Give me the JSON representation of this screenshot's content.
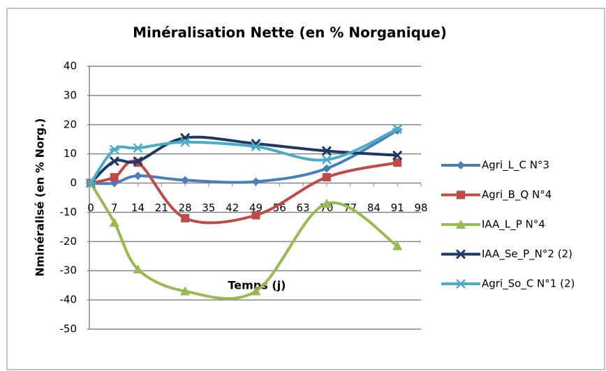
{
  "chart_data": {
    "type": "line",
    "title": "Minéralisation Nette (en % Norganique)",
    "x_label": "Temps (j)",
    "y_label": "Nminéralisé (en % Norg.)",
    "x": [
      0,
      7,
      14,
      28,
      49,
      70,
      91
    ],
    "xlim": [
      0,
      98
    ],
    "xticks": [
      0,
      7,
      14,
      21,
      28,
      35,
      42,
      49,
      56,
      63,
      70,
      77,
      84,
      91,
      98
    ],
    "ylim": [
      -50,
      40
    ],
    "yticks": [
      -50,
      -40,
      -30,
      -20,
      -10,
      0,
      10,
      20,
      30,
      40
    ],
    "grid": true,
    "legend": "right",
    "series": [
      {
        "name": "Agri_L_C N°3",
        "color": "#4a7ebb",
        "marker": "diamond",
        "values": [
          0,
          0,
          2.5,
          1,
          0.5,
          5,
          18
        ]
      },
      {
        "name": "Agri_B_Q N°4",
        "color": "#be4b48",
        "marker": "square",
        "values": [
          0,
          2,
          7,
          -12,
          -11,
          2,
          7
        ]
      },
      {
        "name": "IAA_L_P N°4",
        "color": "#98b954",
        "marker": "triangle",
        "values": [
          0,
          -13.5,
          -29.5,
          -37,
          -37,
          -7,
          -21.5
        ]
      },
      {
        "name": "IAA_Se_P_N°2 (2)",
        "color": "#1f3864",
        "marker": "x",
        "values": [
          0,
          7.5,
          7.5,
          15.5,
          13.5,
          11,
          9.5
        ]
      },
      {
        "name": "Agri_So_C N°1 (2)",
        "color": "#4bacc6",
        "marker": "star",
        "values": [
          0,
          11.5,
          12,
          14,
          12.5,
          8,
          18.5
        ]
      }
    ]
  }
}
